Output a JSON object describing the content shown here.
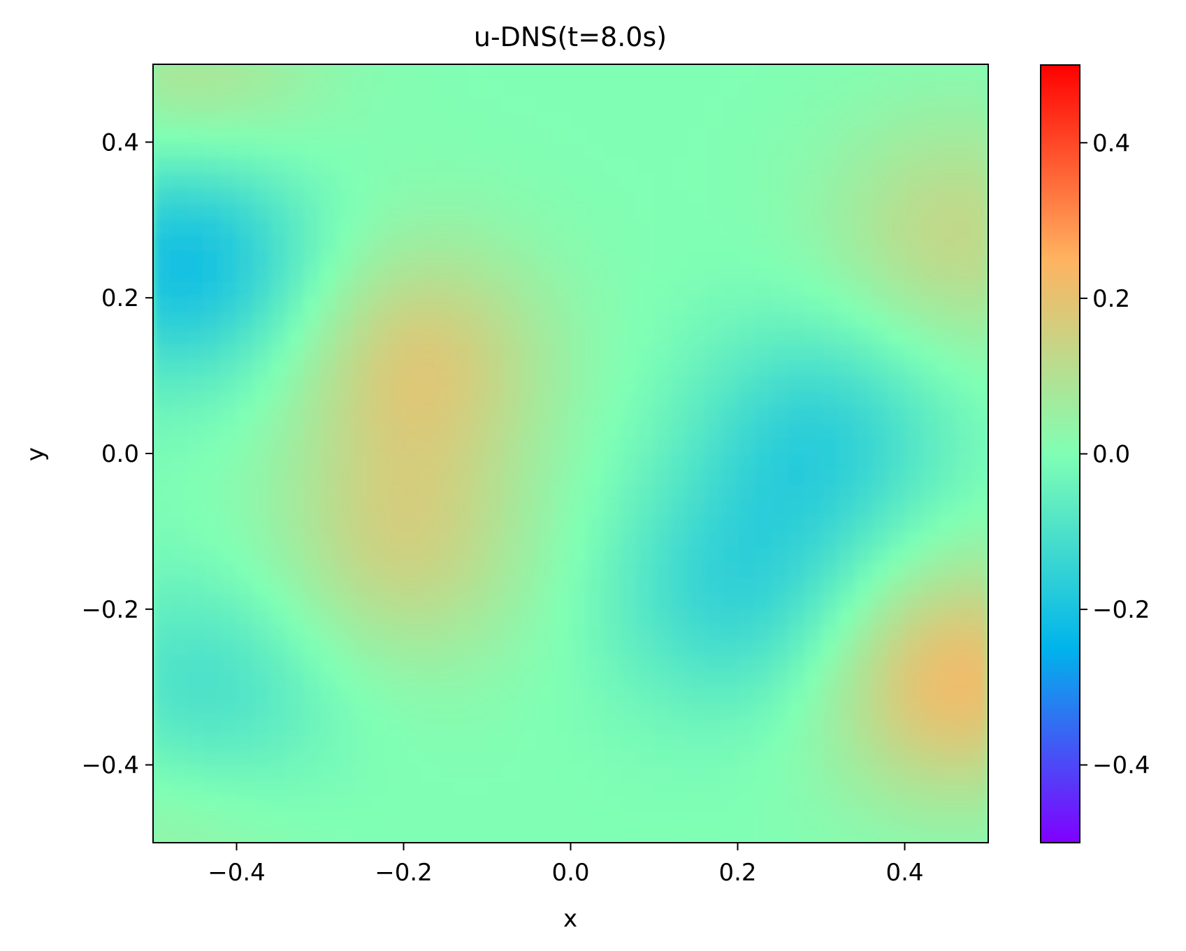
{
  "chart_data": {
    "type": "heatmap",
    "title": "u-DNS(t=8.0s)",
    "xlabel": "x",
    "ylabel": "y",
    "xlim": [
      -0.5,
      0.5
    ],
    "ylim": [
      -0.5,
      0.5
    ],
    "x_ticks": [
      -0.4,
      -0.2,
      0.0,
      0.2,
      0.4
    ],
    "y_ticks": [
      -0.4,
      -0.2,
      0.0,
      0.2,
      0.4
    ],
    "x_tick_labels": [
      "−0.4",
      "−0.2",
      "0.0",
      "0.2",
      "0.4"
    ],
    "y_tick_labels": [
      "−0.4",
      "−0.2",
      "0.0",
      "0.2",
      "0.4"
    ],
    "colorbar": {
      "min": -0.5,
      "max": 0.5,
      "ticks": [
        -0.4,
        -0.2,
        0.0,
        0.2,
        0.4
      ],
      "tick_labels": [
        "−0.4",
        "−0.2",
        "0.0",
        "0.2",
        "0.4"
      ],
      "colormap": "rainbow",
      "colormap_stops": [
        {
          "value": -0.5,
          "color": "#8000ff"
        },
        {
          "value": -0.25,
          "color": "#00b4eb"
        },
        {
          "value": 0.0,
          "color": "#80ffb4"
        },
        {
          "value": 0.25,
          "color": "#ffb360"
        },
        {
          "value": 0.5,
          "color": "#ff0000"
        }
      ]
    },
    "grid": false,
    "field_features": [
      {
        "x": -0.46,
        "y": 0.25,
        "value": -0.22
      },
      {
        "x": -0.45,
        "y": 0.48,
        "value": 0.1
      },
      {
        "x": -0.18,
        "y": 0.12,
        "value": 0.17
      },
      {
        "x": -0.2,
        "y": -0.12,
        "value": 0.14
      },
      {
        "x": 0.3,
        "y": 0.02,
        "value": -0.15
      },
      {
        "x": 0.2,
        "y": -0.18,
        "value": -0.14
      },
      {
        "x": 0.46,
        "y": -0.29,
        "value": 0.22
      },
      {
        "x": 0.46,
        "y": 0.28,
        "value": 0.13
      },
      {
        "x": -0.44,
        "y": -0.32,
        "value": -0.13
      },
      {
        "x": -0.47,
        "y": -0.45,
        "value": 0.07
      }
    ]
  }
}
